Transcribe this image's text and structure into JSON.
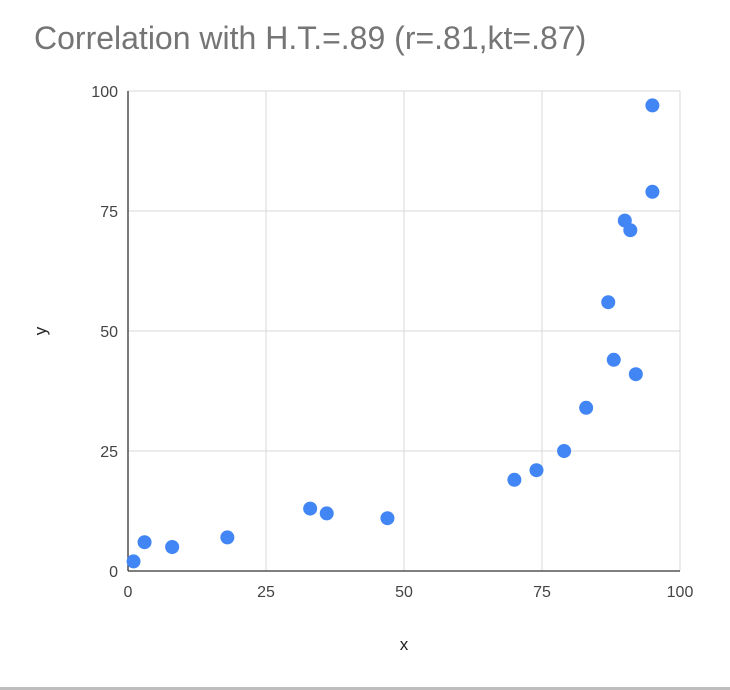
{
  "chart_data": {
    "type": "scatter",
    "title": "Correlation with H.T.=.89 (r=.81,kt=.87)",
    "xlabel": "x",
    "ylabel": "y",
    "xlim": [
      0,
      100
    ],
    "ylim": [
      0,
      100
    ],
    "xticks": [
      0,
      25,
      50,
      75,
      100
    ],
    "yticks": [
      0,
      25,
      50,
      75,
      100
    ],
    "grid": true,
    "legend": "none",
    "point_color": "#4285f4",
    "gridline_color": "#d9d9d9",
    "axis_color": "#333333",
    "points": [
      {
        "x": 1,
        "y": 2
      },
      {
        "x": 3,
        "y": 6
      },
      {
        "x": 8,
        "y": 5
      },
      {
        "x": 18,
        "y": 7
      },
      {
        "x": 33,
        "y": 13
      },
      {
        "x": 36,
        "y": 12
      },
      {
        "x": 47,
        "y": 11
      },
      {
        "x": 70,
        "y": 19
      },
      {
        "x": 74,
        "y": 21
      },
      {
        "x": 79,
        "y": 25
      },
      {
        "x": 83,
        "y": 34
      },
      {
        "x": 87,
        "y": 56
      },
      {
        "x": 88,
        "y": 44
      },
      {
        "x": 90,
        "y": 73
      },
      {
        "x": 91,
        "y": 71
      },
      {
        "x": 92,
        "y": 41
      },
      {
        "x": 95,
        "y": 97
      },
      {
        "x": 95,
        "y": 79
      }
    ]
  }
}
